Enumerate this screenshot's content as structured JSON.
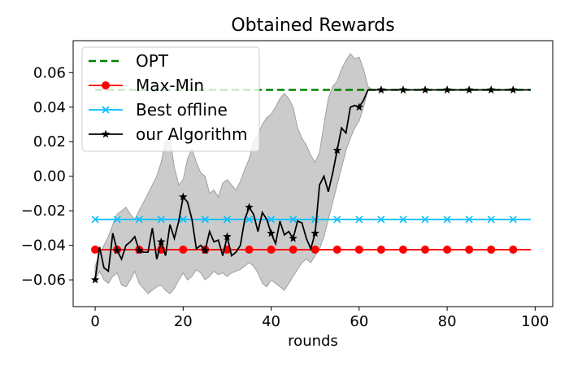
{
  "chart_data": {
    "type": "line",
    "title": "Obtained Rewards",
    "xlabel": "rounds",
    "ylabel": "",
    "xlim": [
      -5,
      104
    ],
    "ylim": [
      -0.0755,
      0.0785
    ],
    "xticks": [
      0,
      20,
      40,
      60,
      80,
      100
    ],
    "xtick_labels": [
      "0",
      "20",
      "40",
      "60",
      "80",
      "100"
    ],
    "yticks": [
      -0.06,
      -0.04,
      -0.02,
      0.0,
      0.02,
      0.04,
      0.06
    ],
    "ytick_labels": [
      "−0.06",
      "−0.04",
      "−0.02",
      "0.00",
      "0.02",
      "0.04",
      "0.06"
    ],
    "grid": false,
    "legend_position": "top-left",
    "band": {
      "x": [
        0,
        1,
        2,
        3,
        4,
        5,
        6,
        7,
        8,
        9,
        10,
        11,
        12,
        13,
        14,
        15,
        16,
        17,
        18,
        19,
        20,
        21,
        22,
        23,
        24,
        25,
        26,
        27,
        28,
        29,
        30,
        31,
        32,
        33,
        34,
        35,
        36,
        37,
        38,
        39,
        40,
        41,
        42,
        43,
        44,
        45,
        46,
        47,
        48,
        49,
        50,
        51,
        52,
        53,
        54,
        55,
        56,
        57,
        58,
        59,
        60,
        61,
        62,
        63,
        64,
        65,
        66,
        67,
        68,
        69,
        70,
        71,
        72,
        73,
        74,
        75,
        76,
        77,
        78,
        79,
        80,
        81,
        82,
        83,
        84,
        85,
        86,
        87,
        88,
        89,
        90,
        91,
        92,
        93,
        94,
        95,
        96,
        97,
        98,
        99
      ],
      "lower": [
        -0.06,
        -0.055,
        -0.06,
        -0.062,
        -0.058,
        -0.056,
        -0.063,
        -0.064,
        -0.06,
        -0.055,
        -0.062,
        -0.065,
        -0.068,
        -0.066,
        -0.064,
        -0.063,
        -0.066,
        -0.068,
        -0.065,
        -0.06,
        -0.056,
        -0.06,
        -0.058,
        -0.054,
        -0.056,
        -0.06,
        -0.058,
        -0.055,
        -0.057,
        -0.056,
        -0.058,
        -0.056,
        -0.055,
        -0.054,
        -0.052,
        -0.05,
        -0.052,
        -0.056,
        -0.062,
        -0.064,
        -0.06,
        -0.062,
        -0.064,
        -0.066,
        -0.062,
        -0.058,
        -0.054,
        -0.05,
        -0.048,
        -0.05,
        -0.046,
        -0.042,
        -0.035,
        -0.025,
        -0.015,
        -0.005,
        0.005,
        0.015,
        0.022,
        0.028,
        0.032,
        0.04,
        0.05,
        0.05,
        0.05,
        0.05,
        0.05,
        0.05,
        0.05,
        0.05,
        0.05,
        0.05,
        0.05,
        0.05,
        0.05,
        0.05,
        0.05,
        0.05,
        0.05,
        0.05,
        0.05,
        0.05,
        0.05,
        0.05,
        0.05,
        0.05,
        0.05,
        0.05,
        0.05,
        0.05,
        0.05,
        0.05,
        0.05,
        0.05,
        0.05,
        0.05,
        0.05,
        0.05,
        0.05,
        0.05
      ],
      "upper": [
        -0.052,
        -0.045,
        -0.04,
        -0.035,
        -0.028,
        -0.022,
        -0.02,
        -0.018,
        -0.022,
        -0.025,
        -0.02,
        -0.015,
        -0.01,
        -0.005,
        0.0,
        0.008,
        0.02,
        0.022,
        0.005,
        -0.005,
        -0.002,
        0.01,
        0.016,
        0.008,
        0.002,
        0.0,
        -0.01,
        -0.008,
        -0.012,
        -0.004,
        -0.002,
        -0.005,
        -0.008,
        -0.003,
        0.004,
        0.01,
        0.02,
        0.024,
        0.03,
        0.034,
        0.036,
        0.04,
        0.045,
        0.048,
        0.045,
        0.04,
        0.028,
        0.022,
        0.018,
        0.012,
        0.008,
        0.014,
        0.03,
        0.045,
        0.052,
        0.055,
        0.062,
        0.067,
        0.071,
        0.068,
        0.069,
        0.062,
        0.052,
        0.05,
        0.05,
        0.05,
        0.05,
        0.05,
        0.05,
        0.05,
        0.05,
        0.05,
        0.05,
        0.05,
        0.05,
        0.05,
        0.05,
        0.05,
        0.05,
        0.05,
        0.05,
        0.05,
        0.05,
        0.05,
        0.05,
        0.05,
        0.05,
        0.05,
        0.05,
        0.05,
        0.05,
        0.05,
        0.05,
        0.05,
        0.05,
        0.05,
        0.05,
        0.05,
        0.05,
        0.05
      ]
    },
    "series": [
      {
        "name": "OPT",
        "color": "#008000",
        "style": "dashed",
        "marker": "none",
        "x": [
          0,
          99
        ],
        "y": [
          0.05,
          0.05
        ]
      },
      {
        "name": "Max-Min",
        "color": "#ff0000",
        "style": "solid",
        "marker": "circle",
        "marker_x": [
          0,
          5,
          10,
          15,
          20,
          25,
          30,
          35,
          40,
          45,
          50,
          55,
          60,
          65,
          70,
          75,
          80,
          85,
          90,
          95
        ],
        "x": [
          0,
          99
        ],
        "y": [
          -0.0425,
          -0.0425
        ]
      },
      {
        "name": "Best offline",
        "color": "#00bfff",
        "style": "solid",
        "marker": "x",
        "marker_x": [
          0,
          5,
          10,
          15,
          20,
          25,
          30,
          35,
          40,
          45,
          50,
          55,
          60,
          65,
          70,
          75,
          80,
          85,
          90,
          95
        ],
        "x": [
          0,
          99
        ],
        "y": [
          -0.025,
          -0.025
        ]
      },
      {
        "name": "our Algorithm",
        "color": "#000000",
        "style": "solid",
        "marker": "star",
        "marker_x": [
          0,
          5,
          10,
          15,
          20,
          25,
          30,
          35,
          40,
          45,
          50,
          55,
          60,
          65,
          70,
          75,
          80,
          85,
          90,
          95
        ],
        "x": [
          0,
          1,
          2,
          3,
          4,
          5,
          6,
          7,
          8,
          9,
          10,
          11,
          12,
          13,
          14,
          15,
          16,
          17,
          18,
          19,
          20,
          21,
          22,
          23,
          24,
          25,
          26,
          27,
          28,
          29,
          30,
          31,
          32,
          33,
          34,
          35,
          36,
          37,
          38,
          39,
          40,
          41,
          42,
          43,
          44,
          45,
          46,
          47,
          48,
          49,
          50,
          51,
          52,
          53,
          54,
          55,
          56,
          57,
          58,
          59,
          60,
          61,
          62,
          63,
          64,
          65,
          66,
          67,
          68,
          69,
          70,
          71,
          72,
          73,
          74,
          75,
          76,
          77,
          78,
          79,
          80,
          81,
          82,
          83,
          84,
          85,
          86,
          87,
          88,
          89,
          90,
          91,
          92,
          93,
          94,
          95,
          96,
          97,
          98,
          99
        ],
        "y": [
          -0.06,
          -0.041,
          -0.053,
          -0.055,
          -0.033,
          -0.043,
          -0.048,
          -0.04,
          -0.038,
          -0.035,
          -0.043,
          -0.044,
          -0.044,
          -0.03,
          -0.048,
          -0.038,
          -0.046,
          -0.028,
          -0.036,
          -0.026,
          -0.012,
          -0.015,
          -0.025,
          -0.042,
          -0.04,
          -0.043,
          -0.032,
          -0.038,
          -0.037,
          -0.046,
          -0.035,
          -0.046,
          -0.044,
          -0.04,
          -0.025,
          -0.018,
          -0.022,
          -0.032,
          -0.021,
          -0.025,
          -0.033,
          -0.039,
          -0.026,
          -0.034,
          -0.032,
          -0.036,
          -0.026,
          -0.027,
          -0.036,
          -0.042,
          -0.033,
          -0.005,
          0.0,
          -0.009,
          0.002,
          0.015,
          0.028,
          0.025,
          0.04,
          0.041,
          0.04,
          0.044,
          0.05,
          0.05,
          0.05,
          0.05,
          0.05,
          0.05,
          0.05,
          0.05,
          0.05,
          0.05,
          0.05,
          0.05,
          0.05,
          0.05,
          0.05,
          0.05,
          0.05,
          0.05,
          0.05,
          0.05,
          0.05,
          0.05,
          0.05,
          0.05,
          0.05,
          0.05,
          0.05,
          0.05,
          0.05,
          0.05,
          0.05,
          0.05,
          0.05,
          0.05,
          0.05,
          0.05,
          0.05,
          0.05
        ]
      }
    ],
    "band_color": "#a0a0a0"
  }
}
